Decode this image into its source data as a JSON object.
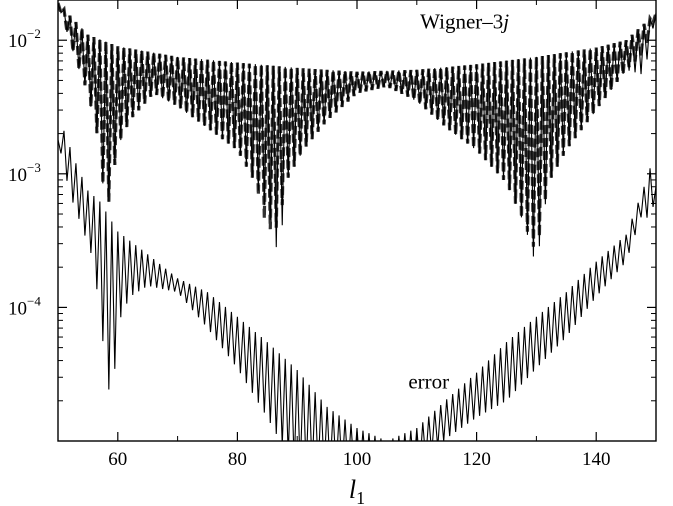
{
  "chart_data": {
    "type": "line",
    "title": "",
    "xlabel": "l",
    "xlabel_subscript": "1",
    "ylabel": "",
    "xlim": [
      50,
      150
    ],
    "ylim": [
      1e-05,
      0.02
    ],
    "yscale": "log",
    "grid": false,
    "legend": "none",
    "x_ticks": [
      60,
      80,
      100,
      120,
      140
    ],
    "x_tick_labels": [
      "60",
      "80",
      "100",
      "120",
      "140"
    ],
    "y_ticks": [
      0.0001,
      0.001,
      0.01
    ],
    "y_tick_labels": [
      {
        "base": "10",
        "exp": "−4"
      },
      {
        "base": "10",
        "exp": "−3"
      },
      {
        "base": "10",
        "exp": "−2"
      }
    ],
    "annotations": [
      {
        "text": "Wigner–3",
        "italic_suffix": "j",
        "x": 118,
        "y": 0.0138
      },
      {
        "text": "error",
        "x": 112,
        "y": 2.8e-05
      }
    ],
    "series": [
      {
        "style": "dashed",
        "color": "#333333",
        "envelope": [
          [
            50,
            0.019
          ],
          [
            55,
            0.011
          ],
          [
            60,
            0.009
          ],
          [
            70,
            0.0075
          ],
          [
            80,
            0.0068
          ],
          [
            90,
            0.0062
          ],
          [
            100,
            0.0058
          ],
          [
            110,
            0.006
          ],
          [
            120,
            0.0066
          ],
          [
            130,
            0.0075
          ],
          [
            140,
            0.0088
          ],
          [
            145,
            0.01
          ],
          [
            150,
            0.016
          ]
        ],
        "minima": [
          [
            50,
            0.019
          ],
          [
            53,
            0.007
          ],
          [
            55,
            0.004
          ],
          [
            57,
            0.0016
          ],
          [
            58,
            0.00045
          ],
          [
            60,
            0.0016
          ],
          [
            62,
            0.0025
          ],
          [
            66,
            0.004
          ],
          [
            70,
            0.0032
          ],
          [
            75,
            0.0022
          ],
          [
            80,
            0.0015
          ],
          [
            83,
            0.00085
          ],
          [
            85,
            0.00038
          ],
          [
            87,
            0.0004
          ],
          [
            88,
            0.00085
          ],
          [
            91,
            0.0015
          ],
          [
            95,
            0.0025
          ],
          [
            100,
            0.004
          ],
          [
            105,
            0.0045
          ],
          [
            110,
            0.0035
          ],
          [
            115,
            0.0022
          ],
          [
            120,
            0.0015
          ],
          [
            125,
            0.00085
          ],
          [
            128,
            0.00042
          ],
          [
            130,
            0.00025
          ],
          [
            132,
            0.00085
          ],
          [
            135,
            0.0015
          ],
          [
            140,
            0.003
          ],
          [
            145,
            0.006
          ],
          [
            148,
            0.008
          ],
          [
            150,
            0.016
          ]
        ]
      },
      {
        "style": "solid",
        "color": "#000000",
        "envelope": [
          [
            50,
            0.019
          ],
          [
            55,
            0.011
          ],
          [
            60,
            0.009
          ],
          [
            70,
            0.0075
          ],
          [
            80,
            0.0068
          ],
          [
            90,
            0.0062
          ],
          [
            100,
            0.0058
          ],
          [
            110,
            0.006
          ],
          [
            120,
            0.0066
          ],
          [
            130,
            0.0075
          ],
          [
            140,
            0.0088
          ],
          [
            145,
            0.01
          ],
          [
            150,
            0.016
          ]
        ],
        "minima": [
          [
            50,
            0.019
          ],
          [
            53,
            0.007
          ],
          [
            55,
            0.004
          ],
          [
            57,
            0.0016
          ],
          [
            58,
            0.00045
          ],
          [
            60,
            0.0016
          ],
          [
            62,
            0.0025
          ],
          [
            66,
            0.004
          ],
          [
            70,
            0.0032
          ],
          [
            75,
            0.0022
          ],
          [
            80,
            0.0015
          ],
          [
            83,
            0.00085
          ],
          [
            86,
            0.0004
          ],
          [
            87,
            0.0002
          ],
          [
            88,
            0.00085
          ],
          [
            91,
            0.0015
          ],
          [
            95,
            0.0025
          ],
          [
            100,
            0.004
          ],
          [
            105,
            0.0045
          ],
          [
            110,
            0.0035
          ],
          [
            115,
            0.0022
          ],
          [
            120,
            0.0015
          ],
          [
            125,
            0.00085
          ],
          [
            128,
            0.00042
          ],
          [
            130,
            0.0002
          ],
          [
            132,
            0.00085
          ],
          [
            135,
            0.0015
          ],
          [
            140,
            0.003
          ],
          [
            145,
            0.006
          ],
          [
            148,
            0.0055
          ],
          [
            150,
            0.016
          ]
        ]
      },
      {
        "name": "error",
        "style": "solid",
        "color": "#000000",
        "envelope": [
          [
            50,
            0.0018
          ],
          [
            51,
            0.0021
          ],
          [
            53,
            0.0012
          ],
          [
            55,
            0.00075
          ],
          [
            57,
            0.00062
          ],
          [
            60,
            0.00037
          ],
          [
            65,
            0.00025
          ],
          [
            70,
            0.000165
          ],
          [
            75,
            0.00013
          ],
          [
            80,
            8.5e-05
          ],
          [
            85,
            5.5e-05
          ],
          [
            90,
            3.4e-05
          ],
          [
            95,
            1.8e-05
          ],
          [
            100,
            1.25e-05
          ],
          [
            105,
            1e-05
          ],
          [
            110,
            1.25e-05
          ],
          [
            115,
            2.05e-05
          ],
          [
            120,
            3.25e-05
          ],
          [
            125,
            5.5e-05
          ],
          [
            130,
            8.5e-05
          ],
          [
            135,
            0.00013
          ],
          [
            140,
            0.00022
          ],
          [
            145,
            0.00035
          ],
          [
            148,
            0.0008
          ],
          [
            149,
            0.0011
          ],
          [
            150,
            0.0008
          ]
        ],
        "minima": [
          [
            50,
            0.0018
          ],
          [
            52,
            0.0007
          ],
          [
            54,
            0.0004
          ],
          [
            56,
            0.00022
          ],
          [
            57,
            8.5e-05
          ],
          [
            59,
            1.6e-05
          ],
          [
            60,
            7.5e-05
          ],
          [
            62,
            0.00012
          ],
          [
            65,
            0.000145
          ],
          [
            70,
            0.00013
          ],
          [
            75,
            7e-05
          ],
          [
            80,
            3.5e-05
          ],
          [
            85,
            1.5e-05
          ],
          [
            88,
            8.5e-06
          ],
          [
            90,
            6e-06
          ],
          [
            95,
            6e-06
          ],
          [
            100,
            6e-06
          ],
          [
            105,
            6e-06
          ],
          [
            110,
            6e-06
          ],
          [
            113,
            8.5e-06
          ],
          [
            115,
            1.05e-05
          ],
          [
            120,
            1.5e-05
          ],
          [
            125,
            2e-05
          ],
          [
            130,
            3.5e-05
          ],
          [
            135,
            6e-05
          ],
          [
            140,
            0.00012
          ],
          [
            145,
            0.00022
          ],
          [
            148,
            0.00055
          ],
          [
            149,
            0.0004
          ],
          [
            150,
            0.0008
          ]
        ]
      }
    ]
  }
}
